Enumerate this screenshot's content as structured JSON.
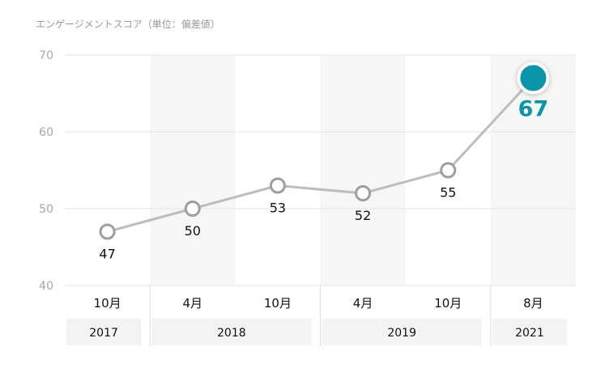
{
  "chart_data": {
    "type": "line",
    "title": "エンゲージメントスコア（単位：偏差値）",
    "ylim": [
      40,
      70
    ],
    "yticks": [
      40,
      50,
      60,
      70
    ],
    "grid": true,
    "categories": [
      "10月",
      "4月",
      "10月",
      "4月",
      "10月",
      "8月"
    ],
    "years": [
      {
        "label": "2017",
        "span": [
          0,
          0
        ]
      },
      {
        "label": "2018",
        "span": [
          1,
          2
        ]
      },
      {
        "label": "2019",
        "span": [
          3,
          4
        ]
      },
      {
        "label": "2021",
        "span": [
          5,
          5
        ]
      }
    ],
    "series": [
      {
        "values": [
          47,
          50,
          53,
          52,
          55,
          67
        ],
        "labels": [
          "47",
          "50",
          "53",
          "52",
          "55",
          "67"
        ],
        "highlight_index": 5
      }
    ],
    "shaded_columns": [
      1,
      3,
      5
    ],
    "colors": {
      "line": "#bdbdbd",
      "marker_stroke": "#9e9e9e",
      "highlight": "#0b95a8",
      "label": "#111111",
      "tick": "#a8a8a8",
      "title": "#9a9a9a",
      "grid": "#e6e6e6",
      "shade": "#f6f6f6",
      "year_box": "#f3f3f3"
    }
  }
}
